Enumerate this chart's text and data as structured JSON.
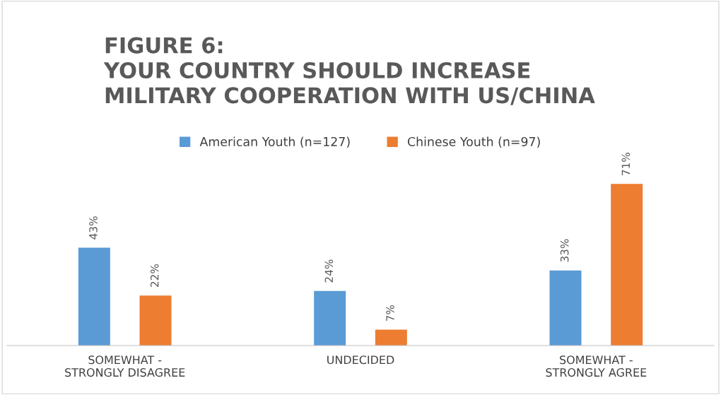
{
  "chart_data": {
    "type": "bar",
    "title": "FIGURE 6:\nYOUR COUNTRY SHOULD INCREASE\nMILITARY COOPERATION WITH US/CHINA",
    "categories": [
      "SOMEWHAT - STRONGLY DISAGREE",
      "UNDECIDED",
      "SOMEWHAT - STRONGLY AGREE"
    ],
    "series": [
      {
        "name": "American Youth (n=127)",
        "color": "#5b9bd5",
        "values": [
          43,
          24,
          33
        ],
        "value_labels": [
          "43%",
          "24%",
          "33%"
        ]
      },
      {
        "name": "Chinese Youth (n=97)",
        "color": "#ed7d31",
        "values": [
          22,
          7,
          71
        ],
        "value_labels": [
          "22%",
          "7%",
          "71%"
        ]
      }
    ],
    "legend": "top",
    "grid": false
  }
}
